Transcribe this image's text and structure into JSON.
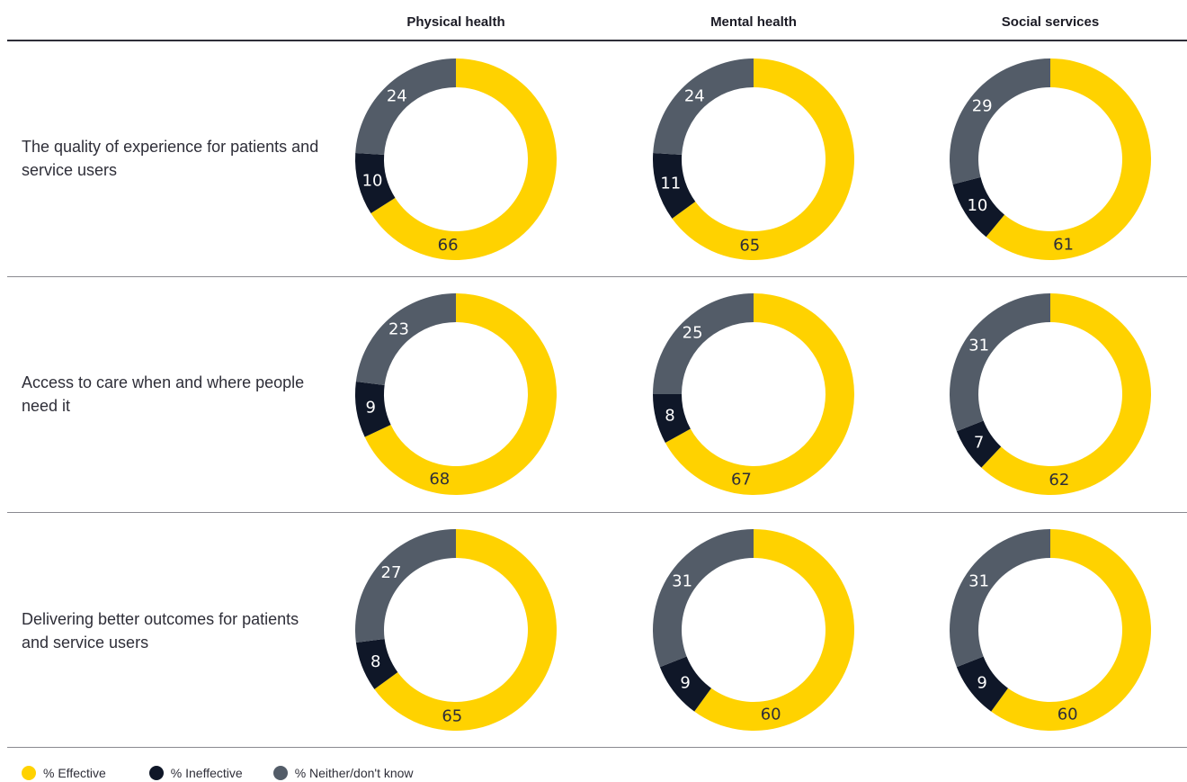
{
  "columns": [
    "Physical health",
    "Mental health",
    "Social services"
  ],
  "rows": [
    "The quality of experience for patients and service users",
    "Access to care when and where people need it",
    "Delivering better outcomes for patients and service users"
  ],
  "colors": {
    "effective": "#ffd200",
    "ineffective": "#0f1728",
    "neither": "#535c68"
  },
  "legend": [
    {
      "label": "% Effective",
      "color": "#ffd200"
    },
    {
      "label": "% Ineffective",
      "color": "#0f1728"
    },
    {
      "label": "% Neither/don't know",
      "color": "#535c68"
    }
  ],
  "chart_data": {
    "type": "donut",
    "series_names": [
      "% Effective",
      "% Ineffective",
      "% Neither/don't know"
    ],
    "cells": [
      [
        {
          "effective": 66,
          "ineffective": 10,
          "neither": 24
        },
        {
          "effective": 65,
          "ineffective": 11,
          "neither": 24
        },
        {
          "effective": 61,
          "ineffective": 10,
          "neither": 29
        }
      ],
      [
        {
          "effective": 68,
          "ineffective": 9,
          "neither": 23
        },
        {
          "effective": 67,
          "ineffective": 8,
          "neither": 25
        },
        {
          "effective": 62,
          "ineffective": 7,
          "neither": 31
        }
      ],
      [
        {
          "effective": 65,
          "ineffective": 8,
          "neither": 27
        },
        {
          "effective": 60,
          "ineffective": 9,
          "neither": 31
        },
        {
          "effective": 60,
          "ineffective": 9,
          "neither": 31
        }
      ]
    ]
  }
}
